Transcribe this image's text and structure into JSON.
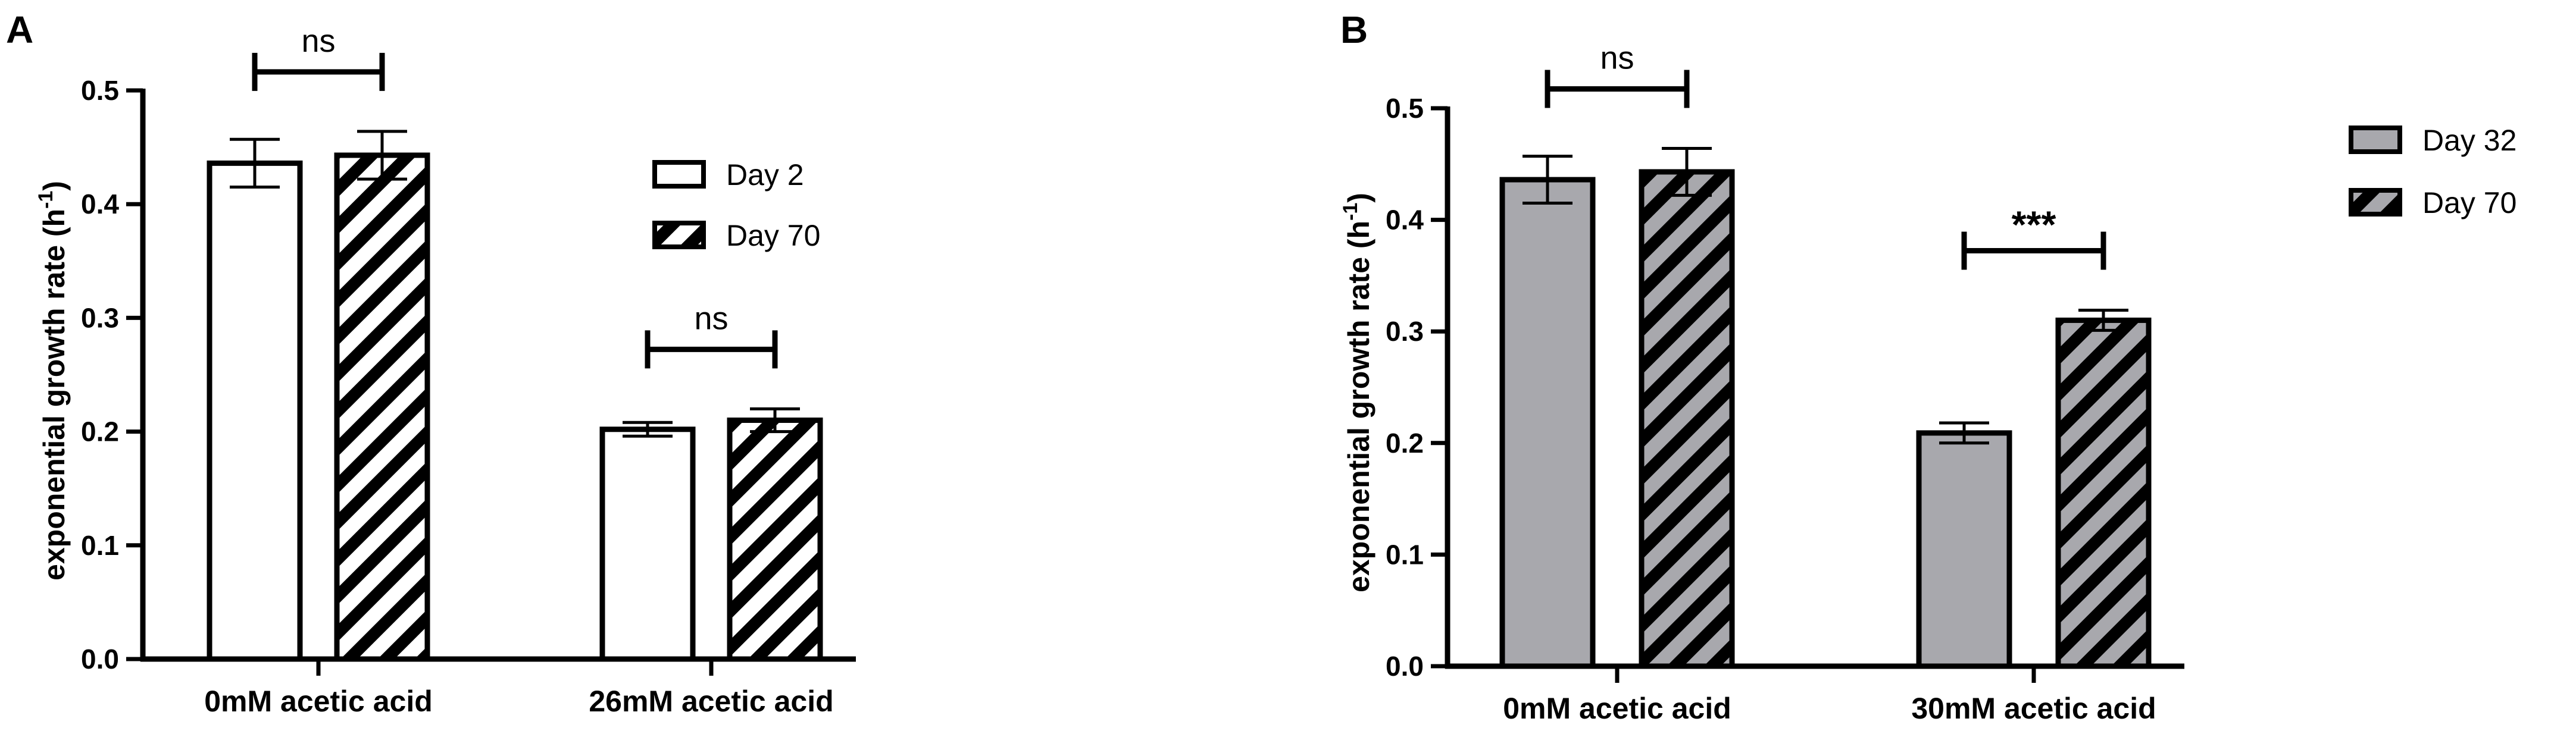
{
  "chart_data": [
    {
      "panel": "A",
      "type": "bar",
      "categories": [
        "0mM acetic acid",
        "26mM acetic acid"
      ],
      "series": [
        {
          "name": "Day 2",
          "values": [
            0.436,
            0.202
          ],
          "errors": [
            0.021,
            0.006
          ],
          "fill": "#ffffff",
          "pattern": "none"
        },
        {
          "name": "Day 70",
          "values": [
            0.443,
            0.21
          ],
          "errors": [
            0.021,
            0.01
          ],
          "fill": "#ffffff",
          "pattern": "hatch"
        }
      ],
      "significance": [
        "ns",
        "ns"
      ],
      "ylabel": "exponential growth rate (h⁻¹)",
      "ylabel_main": "exponential growth rate (h",
      "ylabel_sup": "-1",
      "ylabel_close": ")",
      "ylim": [
        0,
        0.5
      ],
      "yticks": [
        "0.0",
        "0.1",
        "0.2",
        "0.3",
        "0.4",
        "0.5"
      ],
      "legend_position": "right",
      "grid": false
    },
    {
      "panel": "B",
      "type": "bar",
      "categories": [
        "0mM acetic acid",
        "30mM acetic acid"
      ],
      "series": [
        {
          "name": "Day 32",
          "values": [
            0.436,
            0.209
          ],
          "errors": [
            0.021,
            0.009
          ],
          "fill": "#a8a8ad",
          "pattern": "none"
        },
        {
          "name": "Day 70",
          "values": [
            0.443,
            0.31
          ],
          "errors": [
            0.021,
            0.009
          ],
          "fill": "#a8a8ad",
          "pattern": "hatch"
        }
      ],
      "significance": [
        "ns",
        "***"
      ],
      "ylabel": "exponential growth rate (h⁻¹)",
      "ylabel_main": "exponential growth rate (h",
      "ylabel_sup": "-1",
      "ylabel_close": ")",
      "ylim": [
        0,
        0.5
      ],
      "yticks": [
        "0.0",
        "0.1",
        "0.2",
        "0.3",
        "0.4",
        "0.5"
      ],
      "legend_position": "right",
      "grid": false
    }
  ]
}
